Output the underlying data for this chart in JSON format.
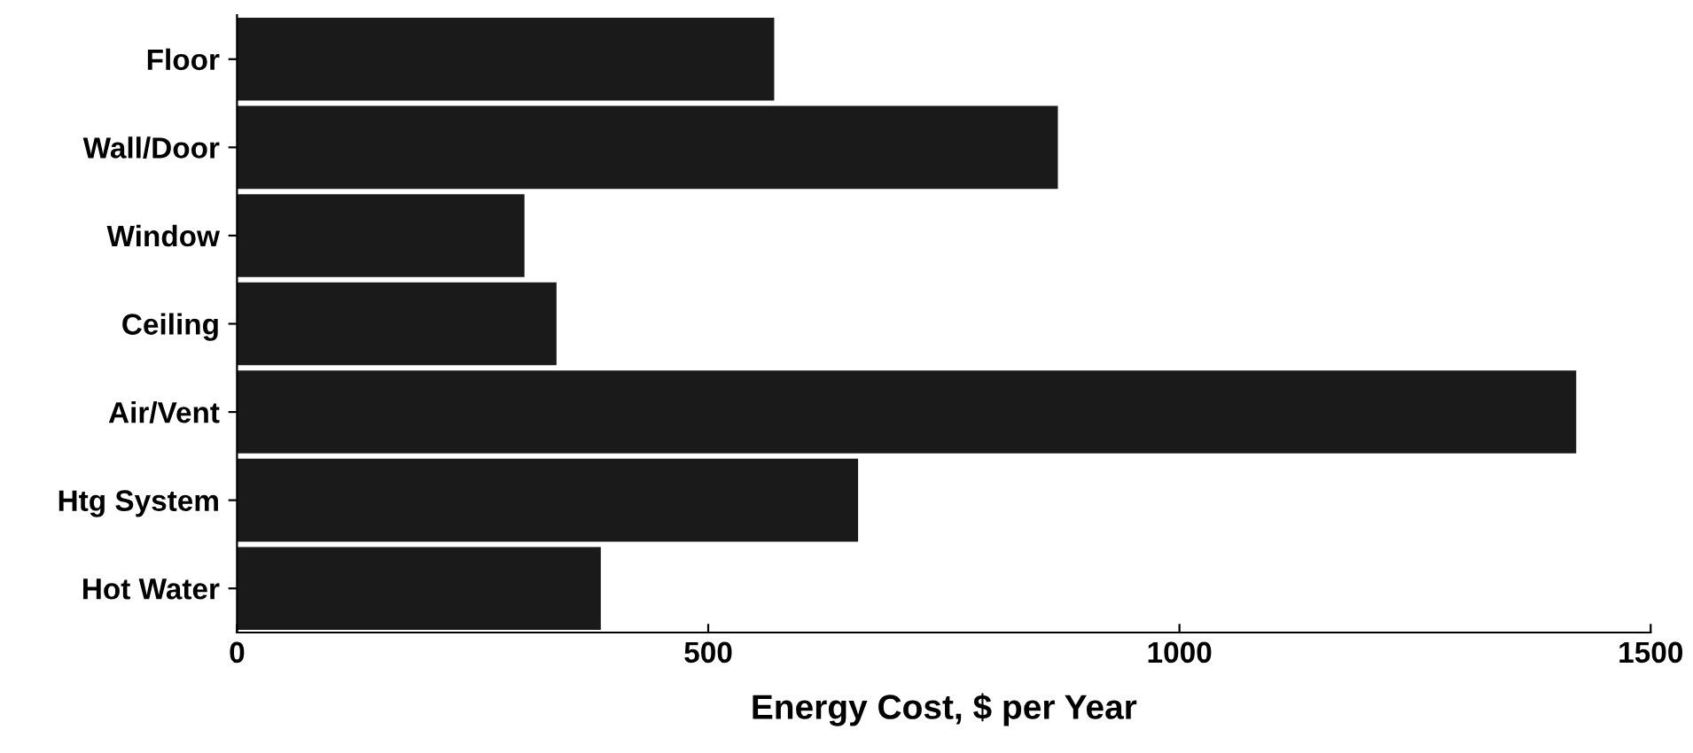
{
  "chart_data": {
    "type": "bar",
    "orientation": "horizontal",
    "xlabel": "Energy Cost, $ per Year",
    "categories": [
      "Floor",
      "Wall/Door",
      "Window",
      "Ceiling",
      "Air/Vent",
      "Htg System",
      "Hot Water"
    ],
    "values": [
      570,
      871,
      305,
      339,
      1421,
      659,
      386
    ],
    "color": "#1a1a1a",
    "xlim": [
      0,
      1500
    ],
    "xticks": [
      0,
      500,
      1000,
      1500
    ],
    "grid": false
  }
}
